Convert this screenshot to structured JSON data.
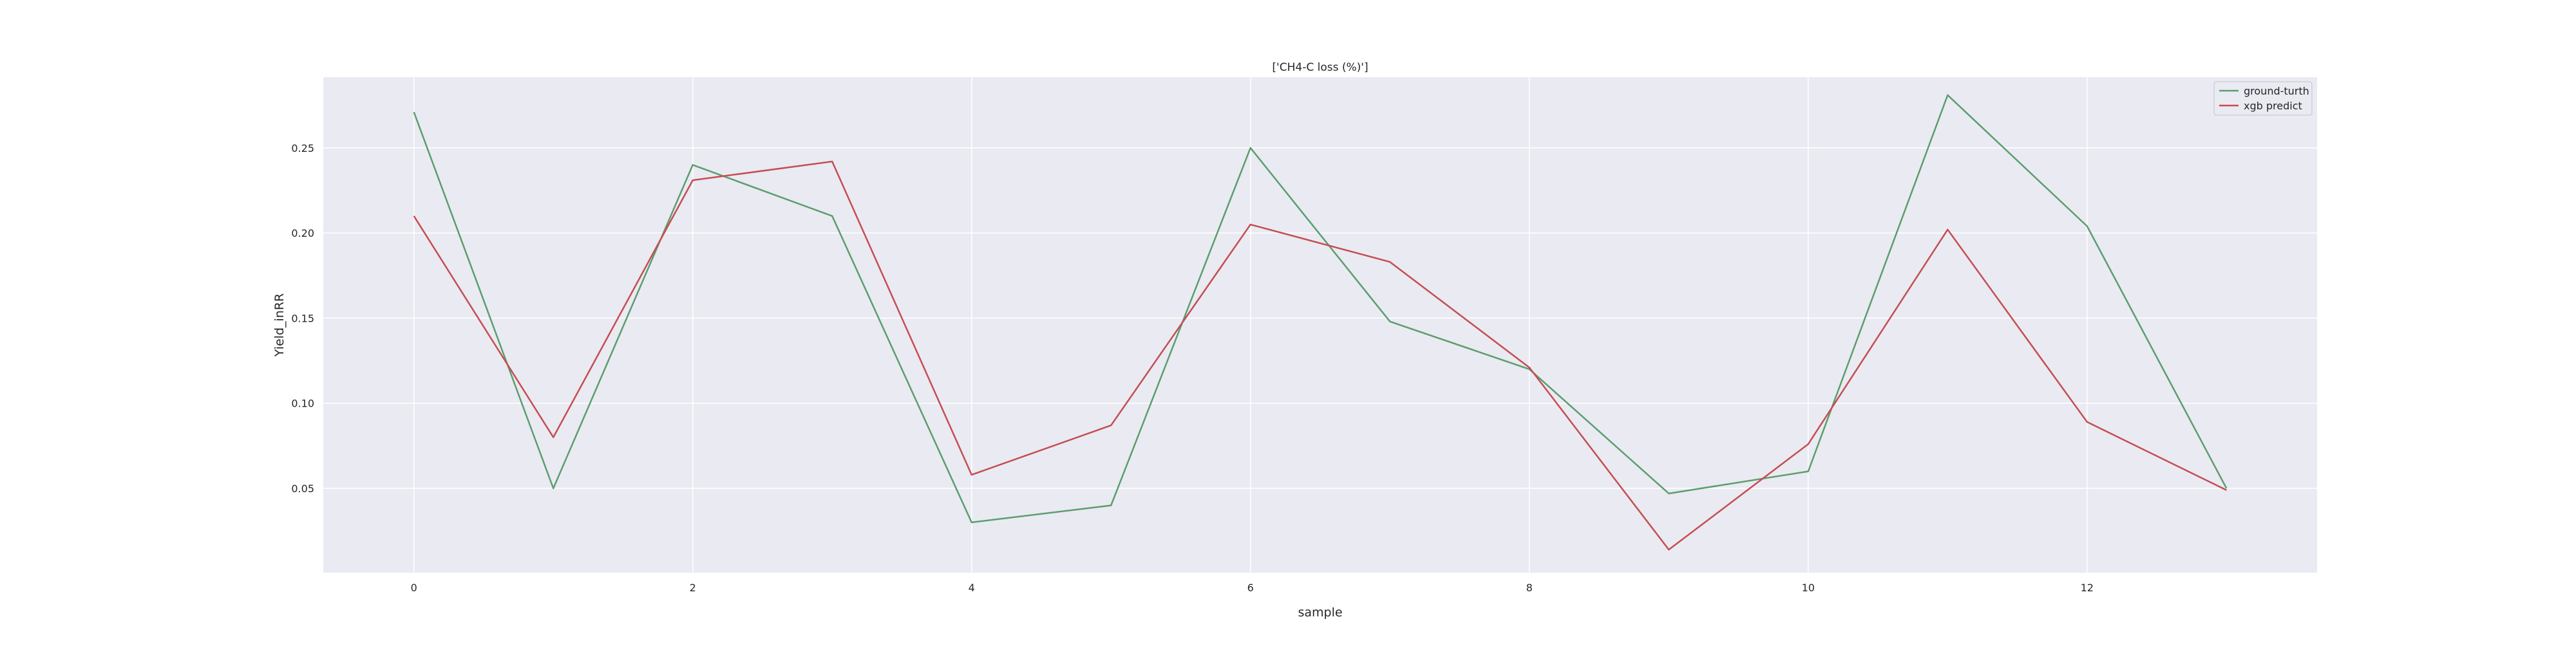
{
  "chart_data": {
    "type": "line",
    "title": "['CH4-C loss (%)']",
    "xlabel": "sample",
    "ylabel": "Yield_inRR",
    "xlim": [
      -0.65,
      13.65
    ],
    "ylim": [
      0.0005,
      0.2915
    ],
    "xticks": [
      0,
      2,
      4,
      6,
      8,
      10,
      12
    ],
    "yticks": [
      0.05,
      0.1,
      0.15,
      0.2,
      0.25
    ],
    "ytick_labels": [
      "0.05",
      "0.10",
      "0.15",
      "0.20",
      "0.25"
    ],
    "grid": true,
    "legend_position": "top-right",
    "x": [
      0,
      1,
      2,
      3,
      4,
      5,
      6,
      7,
      8,
      9,
      10,
      11,
      12,
      13
    ],
    "series": [
      {
        "name": "ground-turth",
        "color": "#5a9e6f",
        "values": [
          0.271,
          0.05,
          0.24,
          0.21,
          0.03,
          0.04,
          0.25,
          0.148,
          0.12,
          0.047,
          0.06,
          0.281,
          0.204,
          0.05
        ]
      },
      {
        "name": "xgb predict",
        "color": "#c44e52",
        "values": [
          0.21,
          0.08,
          0.231,
          0.242,
          0.058,
          0.087,
          0.205,
          0.183,
          0.121,
          0.014,
          0.076,
          0.202,
          0.089,
          0.049
        ]
      }
    ],
    "colors": {
      "plot_background": "#eaeaf2",
      "grid": "#ffffff",
      "text": "#262626"
    }
  }
}
